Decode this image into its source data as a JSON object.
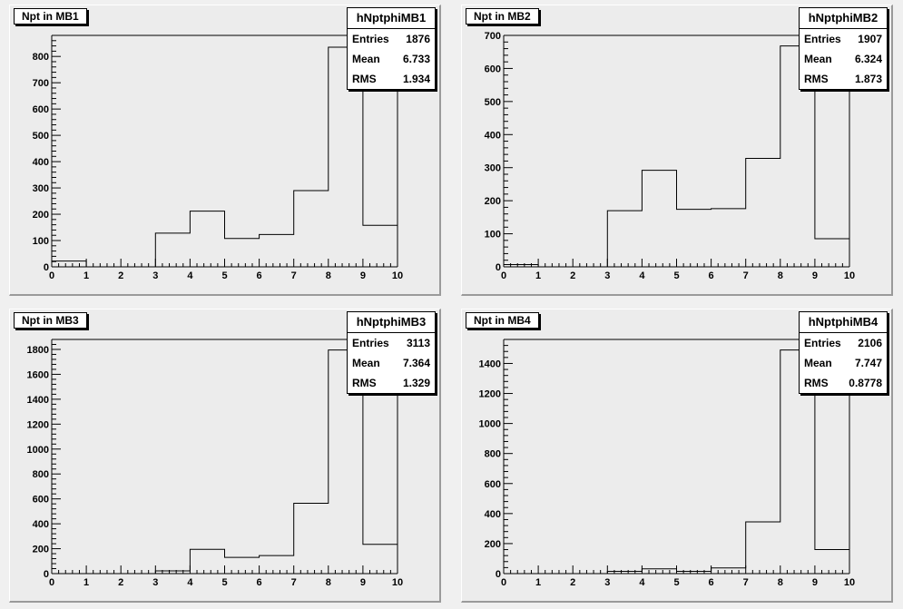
{
  "chart_data": [
    {
      "type": "bar",
      "title": "Npt in MB1",
      "xlim": [
        0,
        10
      ],
      "ylim": [
        0,
        880
      ],
      "x_ticks": [
        0,
        1,
        2,
        3,
        4,
        5,
        6,
        7,
        8,
        9,
        10
      ],
      "y_ticks": [
        0,
        100,
        200,
        300,
        400,
        500,
        600,
        700,
        800
      ],
      "bin_edges": [
        0,
        1,
        2,
        3,
        4,
        5,
        6,
        7,
        8,
        9,
        10
      ],
      "values": [
        22,
        0,
        0,
        128,
        212,
        108,
        123,
        290,
        835,
        158
      ],
      "stats": {
        "name": "hNptphiMB1",
        "entries": "1876",
        "mean": "6.733",
        "rms": "1.934"
      }
    },
    {
      "type": "bar",
      "title": "Npt in MB2",
      "xlim": [
        0,
        10
      ],
      "ylim": [
        0,
        700
      ],
      "x_ticks": [
        0,
        1,
        2,
        3,
        4,
        5,
        6,
        7,
        8,
        9,
        10
      ],
      "y_ticks": [
        0,
        100,
        200,
        300,
        400,
        500,
        600,
        700
      ],
      "bin_edges": [
        0,
        1,
        2,
        3,
        4,
        5,
        6,
        7,
        8,
        9,
        10
      ],
      "values": [
        7,
        0,
        0,
        170,
        292,
        174,
        176,
        328,
        668,
        85
      ],
      "stats": {
        "name": "hNptphiMB2",
        "entries": "1907",
        "mean": "6.324",
        "rms": "1.873"
      }
    },
    {
      "type": "bar",
      "title": "Npt in MB3",
      "xlim": [
        0,
        10
      ],
      "ylim": [
        0,
        1880
      ],
      "x_ticks": [
        0,
        1,
        2,
        3,
        4,
        5,
        6,
        7,
        8,
        9,
        10
      ],
      "y_ticks": [
        0,
        200,
        400,
        600,
        800,
        1000,
        1200,
        1400,
        1600,
        1800
      ],
      "bin_edges": [
        0,
        1,
        2,
        3,
        4,
        5,
        6,
        7,
        8,
        9,
        10
      ],
      "values": [
        0,
        0,
        0,
        22,
        195,
        130,
        145,
        565,
        1795,
        235
      ],
      "stats": {
        "name": "hNptphiMB3",
        "entries": "3113",
        "mean": "7.364",
        "rms": "1.329"
      }
    },
    {
      "type": "bar",
      "title": "Npt in MB4",
      "xlim": [
        0,
        10
      ],
      "ylim": [
        0,
        1560
      ],
      "x_ticks": [
        0,
        1,
        2,
        3,
        4,
        5,
        6,
        7,
        8,
        9,
        10
      ],
      "y_ticks": [
        0,
        200,
        400,
        600,
        800,
        1000,
        1200,
        1400
      ],
      "bin_edges": [
        0,
        1,
        2,
        3,
        4,
        5,
        6,
        7,
        8,
        9,
        10
      ],
      "values": [
        0,
        0,
        0,
        15,
        32,
        15,
        38,
        345,
        1490,
        160
      ],
      "stats": {
        "name": "hNptphiMB4",
        "entries": "2106",
        "mean": "7.747",
        "rms": "0.8778"
      }
    }
  ],
  "labels": {
    "entries": "Entries",
    "mean": "Mean",
    "rms": "RMS"
  }
}
